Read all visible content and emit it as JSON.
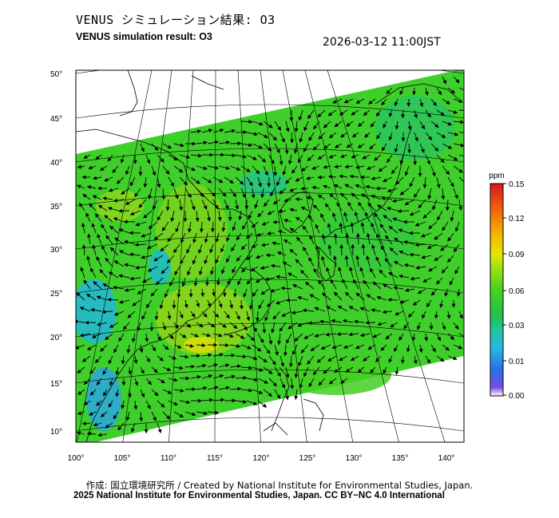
{
  "header": {
    "title_jp": "VENUS シミュレーション結果: O3",
    "title_en": "VENUS simulation result: O3",
    "timestamp": "2026-03-12 11:00JST"
  },
  "map": {
    "lat_labels": [
      "50°",
      "45°",
      "40°",
      "35°",
      "30°",
      "25°",
      "20°",
      "15°",
      "10°"
    ],
    "lon_labels": [
      "100°",
      "105°",
      "110°",
      "115°",
      "120°",
      "125°",
      "130°",
      "135°",
      "140°"
    ],
    "variable": "O3"
  },
  "colorbar": {
    "unit": "ppm",
    "ticks": [
      "0.15",
      "0.12",
      "0.09",
      "0.06",
      "0.03",
      "0.01",
      "0.00"
    ],
    "colors": [
      "#e21b1b",
      "#f06a12",
      "#f5b800",
      "#cce600",
      "#46d11c",
      "#27c246",
      "#1ec7b0",
      "#2ba7e6",
      "#1f55e0",
      "#4a2cc9",
      "#7a4de0",
      "#ffffff"
    ]
  },
  "footer": {
    "credit": "作成: 国立環境研究所 / Created by National Institute for Environmental Studies, Japan.",
    "license": "2025 National Institute for Environmental Studies, Japan. CC BY−NC 4.0 International"
  }
}
